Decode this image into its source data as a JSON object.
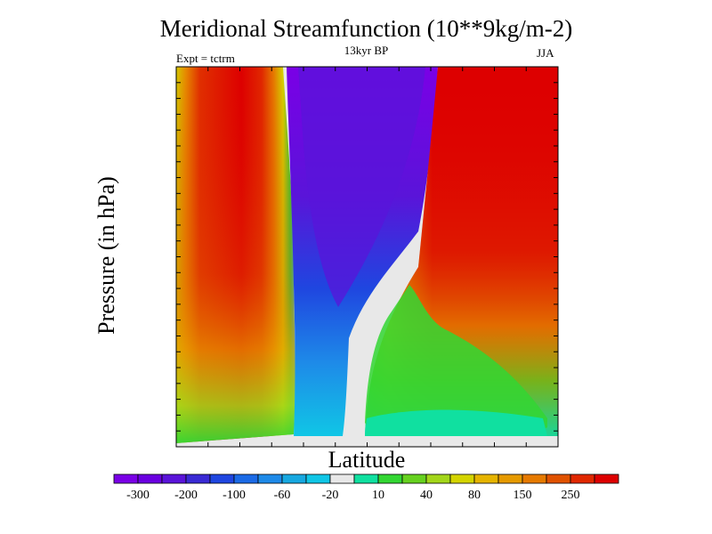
{
  "chart_data": {
    "type": "heatmap",
    "title": "Meridional Streamfunction (10**9kg/m-2)",
    "subtitle": "13kyr BP",
    "left_annotation": "Expt = tctrm",
    "right_annotation": "JJA",
    "xlabel": "Latitude",
    "ylabel": "Pressure (in hPa)",
    "colorbar": {
      "colors": [
        "#7a00e6",
        "#6a00e0",
        "#5a14d9",
        "#3a2ad4",
        "#1f46e0",
        "#1b6ae6",
        "#1e8ae8",
        "#17a8e0",
        "#10c6e6",
        "#e8e8e8",
        "#10e0a0",
        "#33d633",
        "#66d11f",
        "#a3d61a",
        "#d4d400",
        "#e6b400",
        "#e69a00",
        "#e67a00",
        "#e05200",
        "#e02800",
        "#dd0000"
      ],
      "tick_labels": [
        "-300",
        "-200",
        "-100",
        "-60",
        "-20",
        "10",
        "40",
        "80",
        "150",
        "250"
      ]
    }
  }
}
